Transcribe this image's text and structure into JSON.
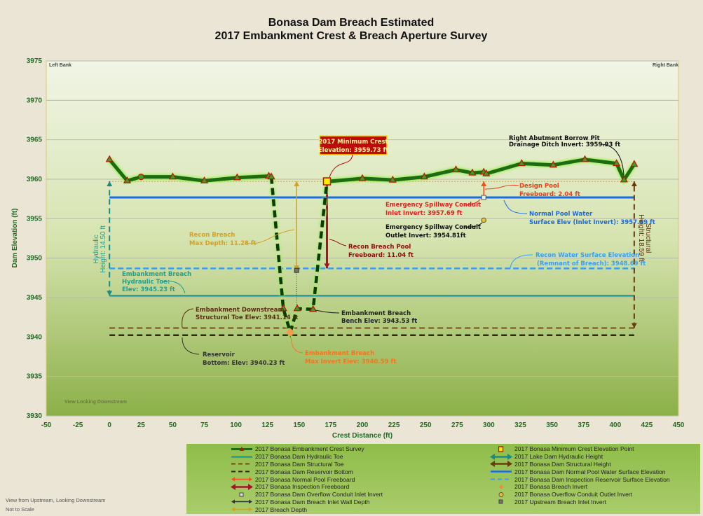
{
  "chart_data": {
    "type": "line",
    "title": "Bonasa Dam Breach Estimated",
    "subtitle": "2017 Embankment Crest & Breach Aperture Survey",
    "xlabel": "Crest Distance (ft)",
    "ylabel": "Dam  Elevation (ft)",
    "xlim": [
      -50,
      450
    ],
    "ylim": [
      3930,
      3975
    ],
    "xticks": [
      -50,
      -25,
      0,
      25,
      50,
      75,
      100,
      125,
      150,
      175,
      200,
      225,
      250,
      275,
      300,
      325,
      350,
      375,
      400,
      425,
      450
    ],
    "yticks": [
      3930,
      3935,
      3940,
      3945,
      3950,
      3955,
      3960,
      3965,
      3970,
      3975
    ],
    "grid": "horizontal",
    "legend_placement": "bottom-right",
    "crest_survey": {
      "x": [
        0,
        14,
        25,
        50,
        75,
        101,
        126,
        128,
        137.5,
        143,
        148.5,
        161,
        172,
        200,
        224,
        249,
        274,
        287,
        296,
        298,
        326,
        351,
        376,
        401,
        407,
        415
      ],
      "y": [
        3962.5,
        3959.8,
        3960.3,
        3960.3,
        3959.8,
        3960.2,
        3960.4,
        3960.3,
        3943.6,
        3940.6,
        3943.6,
        3943.5,
        3959.7,
        3960.1,
        3959.9,
        3960.3,
        3961.2,
        3960.8,
        3960.9,
        3960.7,
        3962.0,
        3961.8,
        3962.5,
        3962.0,
        3959.93,
        3961.9
      ]
    },
    "levels": {
      "minimum_crest": 3959.73,
      "normal_pool": 3957.69,
      "recon_water_surface": 3948.69,
      "hydraulic_toe": 3945.23,
      "structural_toe": 3941.14,
      "reservoir_bottom": 3940.23,
      "breach_invert": 3940.59,
      "breach_bench": 3943.53,
      "conduit_outlet": 3954.81,
      "upstream_breach_inlet": 3948.45
    },
    "points": {
      "minimum_crest_x": 172,
      "breach_invert_x": 143,
      "conduit_x": 296,
      "breach_depth_x": 148,
      "crest_start_x": 0,
      "crest_end_x": 415
    },
    "legend": [
      {
        "label": "2017 Bonasa Embankment Crest Survey",
        "swatch": "crest",
        "color": "#1d6b12"
      },
      {
        "label": "2017 Bonasa Dam Hydraulic Toe",
        "swatch": "line",
        "color": "#2a9b8e"
      },
      {
        "label": "2017 Bonasa Dam Structural Toe",
        "swatch": "dash",
        "color": "#7a4a14"
      },
      {
        "label": "2017 Bonasa Dam Reservoir Bottom",
        "swatch": "dash",
        "color": "#2c2c10"
      },
      {
        "label": "2017 Bonasa Normal Pool Freeboard",
        "swatch": "arrow",
        "color": "#ff4a1a"
      },
      {
        "label": "2017 Bonasa Inspection Freeboard",
        "swatch": "bigarrow",
        "color": "#a5122a"
      },
      {
        "label": "2017 Bonasa Dam Overflow Conduit Inlet Invert",
        "swatch": "sq",
        "color": "#dddddd"
      },
      {
        "label": "2017 Bonasa Dam Breach Inlet Wall Depth",
        "swatch": "arrow",
        "color": "#333333"
      },
      {
        "label": "2017 Breach Depth",
        "swatch": "arrow",
        "color": "#d9a01a"
      },
      {
        "label": "2017 Bonasa Minimum Crest Elevation Point",
        "swatch": "ysq",
        "color": "#ffee00"
      },
      {
        "label": "2017 Lake Dam Hydraulic Height",
        "swatch": "bigarrow",
        "color": "#1a8a8a"
      },
      {
        "label": "2017 Bonasa Dam Structural Height",
        "swatch": "bigarrow",
        "color": "#6b3a10"
      },
      {
        "label": "2017 Bonasa Dam Normal Pool Water Surface Elevation",
        "swatch": "line",
        "color": "#1a6be0"
      },
      {
        "label": "2017 Bonasa Dam Inspection Reservoir Surface Elevation",
        "swatch": "dash",
        "color": "#3a9ff0"
      },
      {
        "label": "2017 Bonasa Breach Invert",
        "swatch": "diamond",
        "color": "#f08a3a"
      },
      {
        "label": "2017 Bonasa Overflow Conduit Outlet Invert",
        "swatch": "circle",
        "color": "#f0c020"
      },
      {
        "label": "2017 Upstream Breach Inlet Invert",
        "swatch": "sq",
        "color": "#777766"
      }
    ]
  },
  "annotations": {
    "left_bank": "Left Bank",
    "right_bank": "Right Bank",
    "view_label": "View Looking Downstream",
    "min_crest": [
      "2017 Minimum Crest",
      "Elevation: 3959.73 ft"
    ],
    "borrow_pit": [
      "Right Abutment Borrow Pit",
      "Drainage Ditch Invert: 3959.93 ft"
    ],
    "design_pool": [
      "Design Pool",
      "Freeboard: 2.04 ft"
    ],
    "spill_inlet": [
      "Emergency Spillway Conduit",
      "Inlet Invert: 3957.69 ft"
    ],
    "normal_pool": [
      "Normal Pool Water",
      "Surface Elev (Inlet Invert): 3957.69 ft"
    ],
    "spill_outlet": [
      "Emergency Spillway Conduit",
      "Outlet Invert: 3954.81ft"
    ],
    "recon_depth": [
      "Recon Breach",
      "Max Depth: 11.28 ft"
    ],
    "recon_freeboard": [
      "Recon Breach Pool",
      "Freeboard: 11.04 ft"
    ],
    "recon_surface": [
      "Recon Water Surface Elevation",
      "(Remnant of Breach): 3948.69 ft"
    ],
    "hydraulic_toe": [
      "Embankment Breach",
      "Hydraulic Toe:",
      "Elev: 3945.23 ft"
    ],
    "hydraulic_height": [
      "Hydraulic",
      "Height: 14.50 ft"
    ],
    "structural_height": [
      "Structural",
      "Height: 18.59 ft"
    ],
    "structural_toe": [
      "Embankment Downstream",
      "Structural Toe Elev: 3941.14 ft"
    ],
    "bench": [
      "Embankment Breach",
      "Bench Elev: 3943.53 ft"
    ],
    "reservoir": [
      "Reservoir",
      "Bottom: Elev: 3940.23 ft"
    ],
    "invert": [
      "Embankment Breach",
      "Max Invert Elev: 3940.59 ft"
    ]
  },
  "footnote": [
    "View from Upstream, Looking Downstream",
    "Not to Scale"
  ]
}
